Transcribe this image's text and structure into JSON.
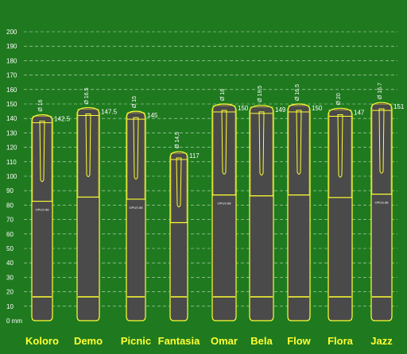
{
  "chart_data": {
    "type": "bar",
    "ylabel": "mm",
    "ylim": [
      0,
      200
    ],
    "yticks": [
      0,
      10,
      20,
      30,
      40,
      50,
      60,
      70,
      80,
      90,
      100,
      110,
      120,
      130,
      140,
      150,
      160,
      170,
      180,
      190,
      200
    ],
    "zero_tick_label": "0 mm",
    "grid": true,
    "categories": [
      "Koloro",
      "Demo",
      "Picnic",
      "Fantasia",
      "Omar",
      "Bela",
      "Flow",
      "Flora",
      "Jazz"
    ],
    "series": [
      {
        "values": [
          142.5,
          147.5,
          145,
          117,
          150,
          149,
          150,
          147,
          151
        ],
        "value_labels": [
          "142.5",
          "147.5",
          "145",
          "117",
          "150",
          "149",
          "150",
          "147",
          "151"
        ],
        "diameter_labels": [
          "Ø 16",
          "Ø 16.5",
          "Ø 15",
          "Ø 14,5",
          "Ø 18",
          "Ø 19,5",
          "Ø 16.5",
          "Ø 20",
          "Ø 16.7"
        ]
      }
    ],
    "annotations": [
      "OPUS 88"
    ],
    "colors": {
      "background": "#1f7a1f",
      "pen_body": "#4a4a4a",
      "outline": "#ffff33",
      "grid": "#ffffff",
      "text": "#ffffff"
    }
  }
}
